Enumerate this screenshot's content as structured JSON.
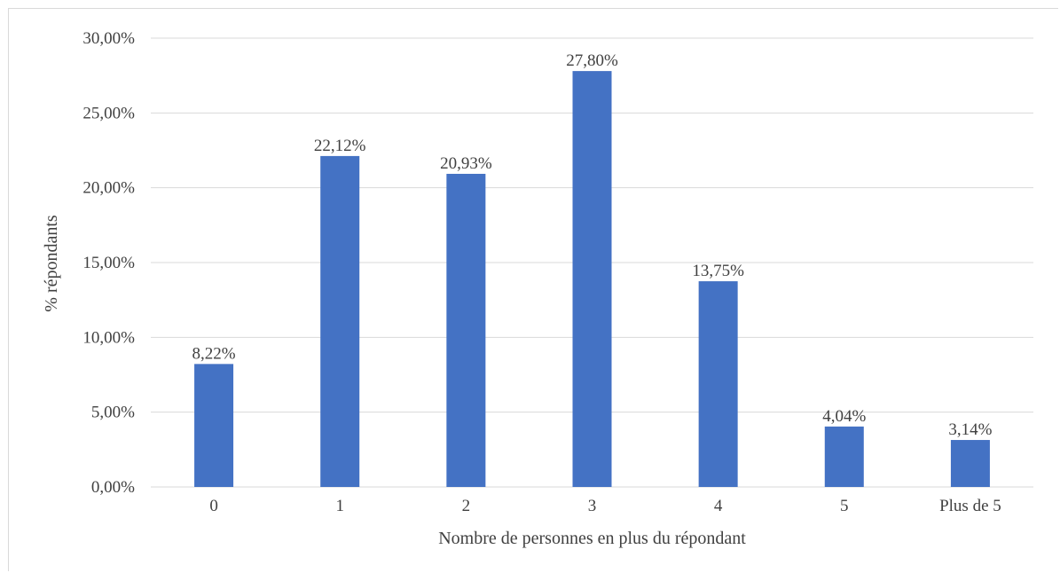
{
  "chart_data": {
    "type": "bar",
    "categories": [
      "0",
      "1",
      "2",
      "3",
      "4",
      "5",
      "Plus de 5"
    ],
    "values": [
      8.22,
      22.12,
      20.93,
      27.8,
      13.75,
      4.04,
      3.14
    ],
    "value_labels": [
      "8,22%",
      "22,12%",
      "20,93%",
      "27,80%",
      "13,75%",
      "4,04%",
      "3,14%"
    ],
    "xlabel": "Nombre de personnes en plus du répondant",
    "ylabel": "%  répondants",
    "ylim": [
      0,
      30
    ],
    "yticks": [
      0,
      5,
      10,
      15,
      20,
      25,
      30
    ],
    "ytick_labels": [
      "0,00%",
      "5,00%",
      "10,00%",
      "15,00%",
      "20,00%",
      "25,00%",
      "30,00%"
    ],
    "grid": true,
    "bar_color": "#4472C4",
    "grid_color": "#d9d9d9"
  }
}
